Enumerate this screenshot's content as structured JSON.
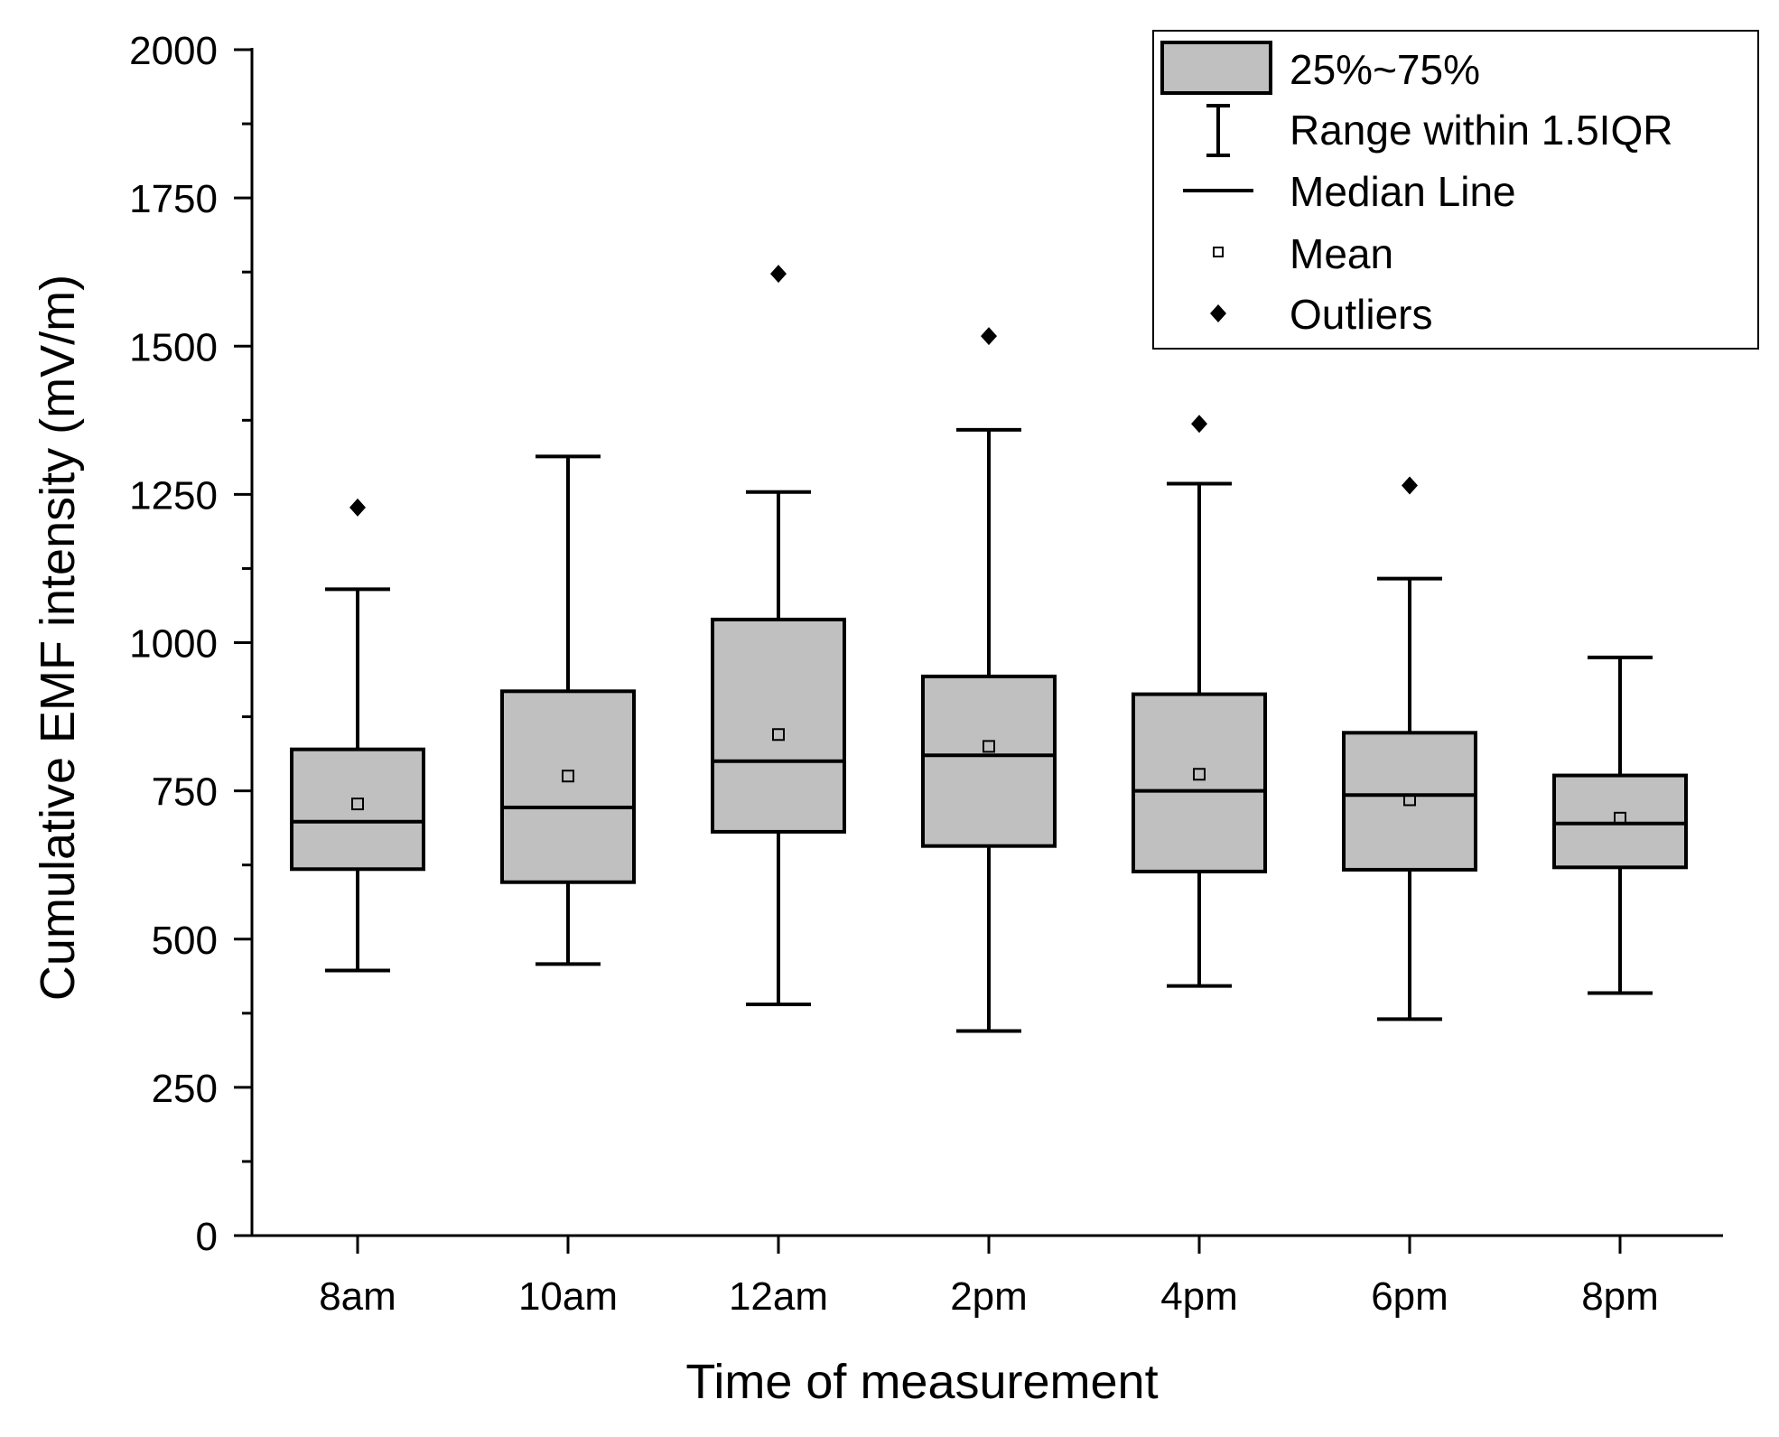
{
  "chart_data": {
    "type": "box",
    "xlabel": "Time of measurement",
    "ylabel": "Cumulative EMF intensity (mV/m)",
    "ylim": [
      0,
      2000
    ],
    "yticks": [
      0,
      250,
      500,
      750,
      1000,
      1250,
      1500,
      1750,
      2000
    ],
    "categories": [
      "8am",
      "10am",
      "12am",
      "2pm",
      "4pm",
      "6pm",
      "8pm"
    ],
    "boxes": [
      {
        "category": "8am",
        "whisker_low": 447,
        "q1": 618,
        "median": 698,
        "q3": 820,
        "whisker_high": 1090,
        "mean": 728,
        "outliers": [
          1228
        ]
      },
      {
        "category": "10am",
        "whisker_low": 458,
        "q1": 596,
        "median": 722,
        "q3": 918,
        "whisker_high": 1314,
        "mean": 775,
        "outliers": []
      },
      {
        "category": "12am",
        "whisker_low": 390,
        "q1": 681,
        "median": 800,
        "q3": 1039,
        "whisker_high": 1254,
        "mean": 845,
        "outliers": [
          1622
        ]
      },
      {
        "category": "2pm",
        "whisker_low": 345,
        "q1": 657,
        "median": 810,
        "q3": 943,
        "whisker_high": 1359,
        "mean": 825,
        "outliers": [
          1517
        ]
      },
      {
        "category": "4pm",
        "whisker_low": 421,
        "q1": 614,
        "median": 750,
        "q3": 913,
        "whisker_high": 1268,
        "mean": 778,
        "outliers": [
          1369
        ]
      },
      {
        "category": "6pm",
        "whisker_low": 365,
        "q1": 617,
        "median": 743,
        "q3": 848,
        "whisker_high": 1108,
        "mean": 735,
        "outliers": [
          1265
        ]
      },
      {
        "category": "8pm",
        "whisker_low": 409,
        "q1": 621,
        "median": 695,
        "q3": 776,
        "whisker_high": 975,
        "mean": 704,
        "outliers": []
      }
    ],
    "legend": {
      "position": "top-right",
      "items": [
        "25%~75%",
        "Range within 1.5IQR",
        "Median Line",
        "Mean",
        "Outliers"
      ]
    },
    "box_fill": "#c0c0c0",
    "line_color": "#000000"
  }
}
